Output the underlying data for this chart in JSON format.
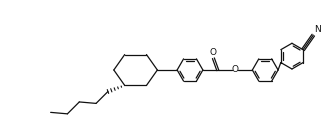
{
  "bg_color": "#ffffff",
  "line_color": "#111111",
  "lw": 0.9,
  "figsize": [
    3.21,
    1.38
  ],
  "dpi": 100,
  "xlim": [
    0,
    321
  ],
  "ylim": [
    0,
    138
  ]
}
